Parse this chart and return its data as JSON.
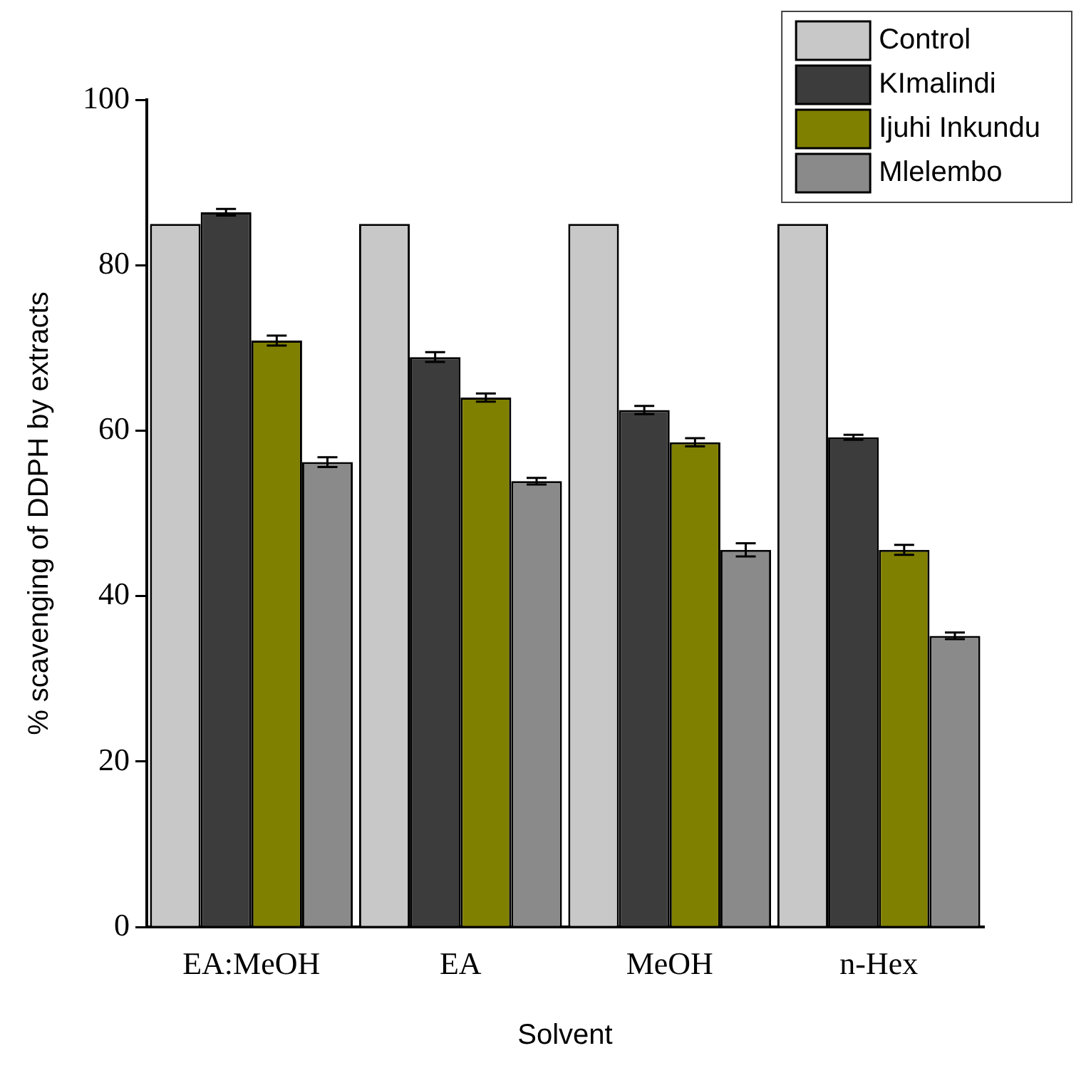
{
  "chart_data": {
    "type": "bar",
    "xlabel": "Solvent",
    "ylabel": "% scavenging of DDPH by extracts",
    "categories": [
      "EA:MeOH",
      "EA",
      "MeOH",
      "n-Hex"
    ],
    "series": [
      {
        "name": "Control",
        "color": "#c8c8c8",
        "values": [
          85,
          85,
          85,
          85
        ]
      },
      {
        "name": "KImalindi",
        "color": "#3c3c3c",
        "values": [
          86.4,
          68.9,
          62.5,
          59.2
        ],
        "errors": [
          0.4,
          0.6,
          0.5,
          0.3
        ]
      },
      {
        "name": "Ijuhi Inkundu",
        "color": "#808000",
        "values": [
          70.9,
          64.0,
          58.6,
          45.6
        ],
        "errors": [
          0.6,
          0.5,
          0.5,
          0.6
        ]
      },
      {
        "name": "Mlelembo",
        "color": "#8a8a8a",
        "values": [
          56.2,
          53.9,
          45.6,
          35.2
        ],
        "errors": [
          0.6,
          0.4,
          0.8,
          0.4
        ]
      }
    ],
    "ylim": [
      0,
      100
    ],
    "yticks": [
      0,
      20,
      40,
      60,
      80,
      100
    ],
    "grid": false,
    "legend": "top right"
  }
}
